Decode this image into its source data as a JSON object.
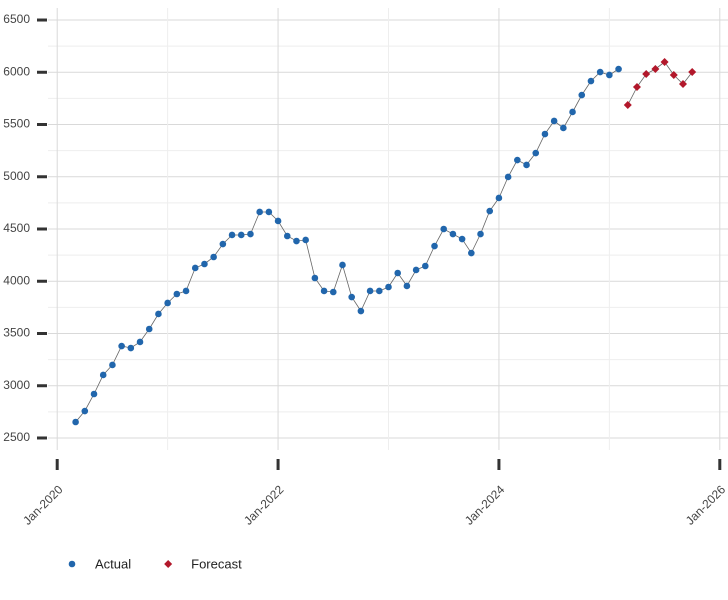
{
  "chart_data": {
    "type": "line",
    "x": [
      "Mar-2020",
      "Apr-2020",
      "May-2020",
      "Jun-2020",
      "Jul-2020",
      "Aug-2020",
      "Sep-2020",
      "Oct-2020",
      "Nov-2020",
      "Dec-2020",
      "Jan-2021",
      "Feb-2021",
      "Mar-2021",
      "Apr-2021",
      "May-2021",
      "Jun-2021",
      "Jul-2021",
      "Aug-2021",
      "Sep-2021",
      "Oct-2021",
      "Nov-2021",
      "Dec-2021",
      "Jan-2022",
      "Feb-2022",
      "Mar-2022",
      "Apr-2022",
      "May-2022",
      "Jun-2022",
      "Jul-2022",
      "Aug-2022",
      "Sep-2022",
      "Oct-2022",
      "Nov-2022",
      "Dec-2022",
      "Jan-2023",
      "Feb-2023",
      "Mar-2023",
      "Apr-2023",
      "May-2023",
      "Jun-2023",
      "Jul-2023",
      "Aug-2023",
      "Sep-2023",
      "Oct-2023",
      "Nov-2023",
      "Dec-2023",
      "Jan-2024",
      "Feb-2024",
      "Mar-2024",
      "Apr-2024",
      "May-2024",
      "Jun-2024",
      "Jul-2024",
      "Aug-2024",
      "Sep-2024",
      "Oct-2024",
      "Nov-2024",
      "Dec-2024",
      "Jan-2025",
      "Feb-2025",
      "Mar-2025",
      "Apr-2025",
      "May-2025",
      "Jun-2025",
      "Jul-2025",
      "Aug-2025",
      "Sep-2025",
      "Oct-2025"
    ],
    "series": [
      {
        "name": "Actual",
        "color": "#2166ac",
        "marker": "circle",
        "values": [
          2653,
          2758,
          2921,
          3103,
          3199,
          3380,
          3361,
          3419,
          3543,
          3687,
          3792,
          3878,
          3907,
          4127,
          4165,
          4232,
          4356,
          4443,
          4443,
          4452,
          4663,
          4663,
          4577,
          4433,
          4385,
          4395,
          4031,
          3907,
          3897,
          4156,
          3849,
          3715,
          3907,
          3907,
          3945,
          4079,
          3955,
          4108,
          4146,
          4337,
          4500,
          4452,
          4404,
          4270,
          4452,
          4672,
          4797,
          4998,
          5160,
          5113,
          5227,
          5409,
          5534,
          5467,
          5620,
          5782,
          5916,
          6002,
          5974,
          6031,
          null,
          null,
          null,
          null,
          null,
          null,
          null,
          null
        ]
      },
      {
        "name": "Forecast",
        "color": "#b2182b",
        "marker": "diamond",
        "values": [
          null,
          null,
          null,
          null,
          null,
          null,
          null,
          null,
          null,
          null,
          null,
          null,
          null,
          null,
          null,
          null,
          null,
          null,
          null,
          null,
          null,
          null,
          null,
          null,
          null,
          null,
          null,
          null,
          null,
          null,
          null,
          null,
          null,
          null,
          null,
          null,
          null,
          null,
          null,
          null,
          null,
          null,
          null,
          null,
          null,
          null,
          null,
          null,
          null,
          null,
          null,
          null,
          null,
          null,
          null,
          null,
          null,
          null,
          null,
          null,
          5687,
          5859,
          5983,
          6031,
          6098,
          5974,
          5888,
          6002
        ]
      }
    ],
    "xlim": [
      "Dec-2019",
      "Feb-2026"
    ],
    "xticks": [
      "Jan-2020",
      "Jan-2022",
      "Jan-2024",
      "Jan-2026"
    ],
    "ylim": [
      2385,
      6615
    ],
    "yticks": [
      2500,
      3000,
      3500,
      4000,
      4500,
      5000,
      5500,
      6000,
      6500
    ],
    "grid": true
  }
}
